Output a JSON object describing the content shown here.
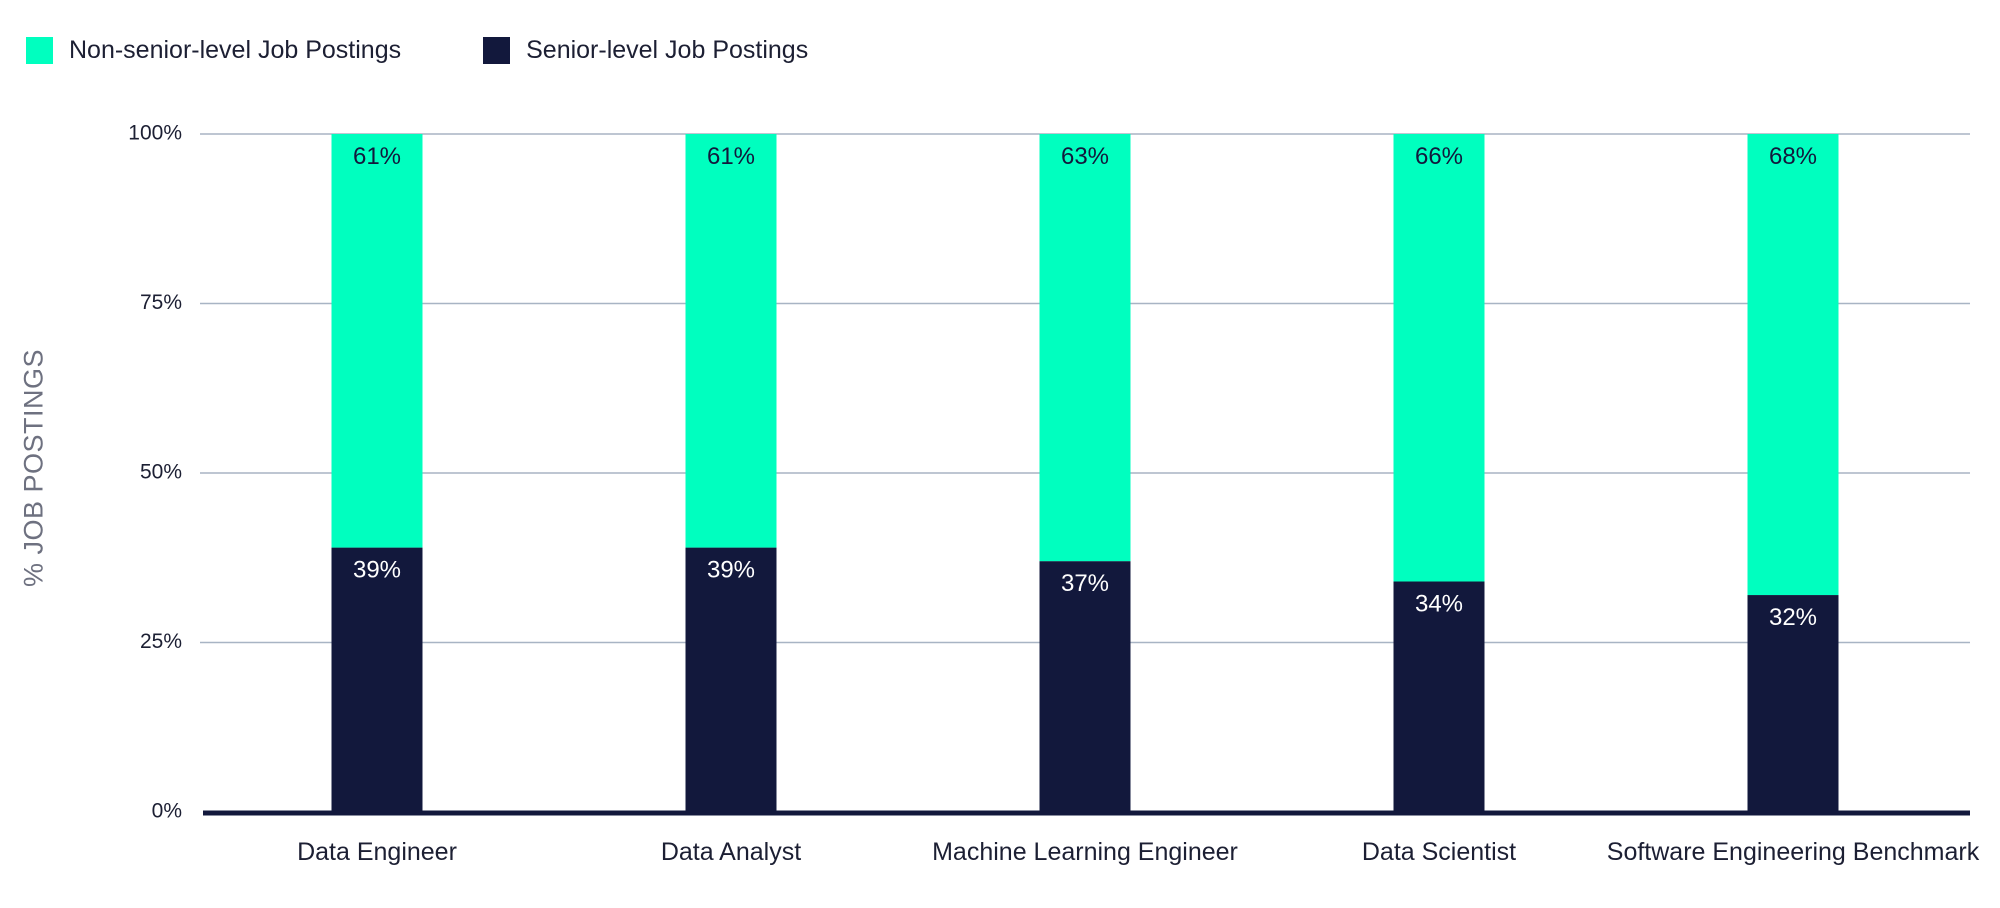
{
  "chart_data": {
    "type": "bar",
    "stacked": true,
    "categories": [
      "Data Engineer",
      "Data Analyst",
      "Machine Learning Engineer",
      "Data Scientist",
      "Software Engineering Benchmark"
    ],
    "series": [
      {
        "name": "Senior-level Job Postings",
        "values": [
          39,
          39,
          37,
          34,
          32
        ],
        "labels": [
          "39%",
          "39%",
          "37%",
          "34%",
          "32%"
        ],
        "color": "#12183c",
        "label_color": "#ffffff"
      },
      {
        "name": "Non-senior-level Job Postings",
        "values": [
          61,
          61,
          63,
          66,
          68
        ],
        "labels": [
          "61%",
          "61%",
          "63%",
          "66%",
          "68%"
        ],
        "color": "#00ffbf",
        "label_color": "#12183c"
      }
    ],
    "title": "",
    "xlabel": "",
    "ylabel": "% JOB POSTINGS",
    "ylim": [
      0,
      100
    ],
    "yticks": [
      0,
      25,
      50,
      75,
      100
    ],
    "ytick_labels": [
      "0%",
      "25%",
      "50%",
      "75%",
      "100%"
    ],
    "grid": true,
    "legend_position": "top-left",
    "gridline_color": "#a8b4c4",
    "axis_color": "#12183c"
  },
  "legend": {
    "items": [
      {
        "label": "Non-senior-level Job Postings",
        "color": "#00ffbf"
      },
      {
        "label": "Senior-level Job Postings",
        "color": "#12183c"
      }
    ]
  }
}
